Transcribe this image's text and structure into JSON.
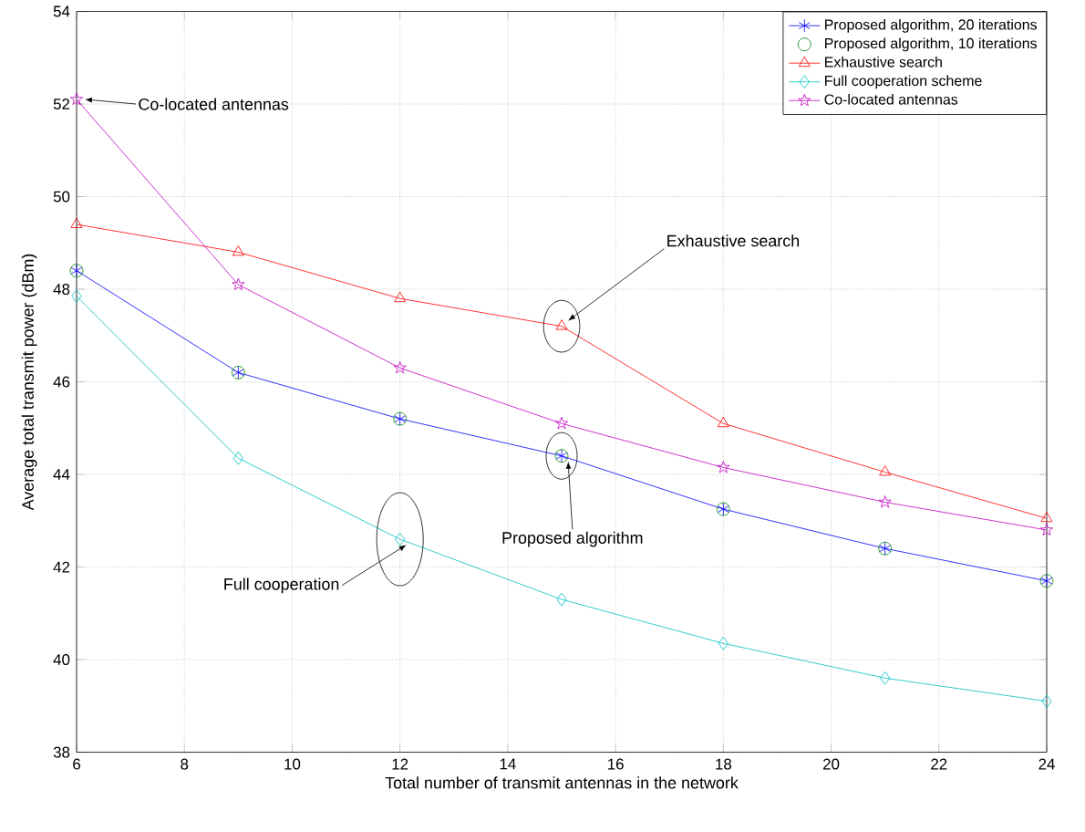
{
  "chart_data": {
    "type": "line",
    "xlabel": "Total number of transmit antennas in the network",
    "ylabel": "Average total transmit power (dBm)",
    "x": [
      6,
      9,
      12,
      15,
      18,
      21,
      24
    ],
    "xlim": [
      6,
      24
    ],
    "ylim": [
      38,
      54
    ],
    "xticks": [
      6,
      8,
      10,
      12,
      14,
      16,
      18,
      20,
      22,
      24
    ],
    "yticks": [
      38,
      40,
      42,
      44,
      46,
      48,
      50,
      52,
      54
    ],
    "grid": true,
    "legend": "top right",
    "series": [
      {
        "name": "Proposed algorithm, 20 iterations",
        "color": "#0000ff",
        "marker": "cross",
        "line_style": "solid",
        "values": [
          48.4,
          46.2,
          45.2,
          44.4,
          43.25,
          42.4,
          41.7
        ]
      },
      {
        "name": "Proposed algorithm, 10 iterations",
        "color": "#008000",
        "marker": "circle",
        "type": "scatter",
        "values": [
          48.4,
          46.2,
          45.2,
          44.4,
          43.25,
          42.4,
          41.7
        ]
      },
      {
        "name": "Exhaustive search",
        "color": "#ff0000",
        "marker": "triangle",
        "line_style": "solid",
        "values": [
          49.4,
          48.8,
          47.8,
          47.2,
          45.1,
          44.05,
          43.05
        ]
      },
      {
        "name": "Full cooperation scheme",
        "color": "#00bfbf",
        "marker": "diamond",
        "line_style": "solid",
        "values": [
          47.85,
          44.35,
          42.6,
          41.3,
          40.35,
          39.6,
          39.1
        ]
      },
      {
        "name": "Co-located antennas",
        "color": "#bf00bf",
        "marker": "star",
        "line_style": "solid",
        "values": [
          52.1,
          48.1,
          46.3,
          45.1,
          44.15,
          43.4,
          42.8
        ]
      }
    ],
    "annotations": [
      {
        "text": "Co-located antennas",
        "x": 6,
        "y": 52.1
      },
      {
        "text": "Exhaustive search",
        "x": 15,
        "y": 47.2
      },
      {
        "text": "Proposed algorithm",
        "x": 15,
        "y": 44.4
      },
      {
        "text": "Full cooperation",
        "x": 12,
        "y": 42.6
      }
    ]
  }
}
